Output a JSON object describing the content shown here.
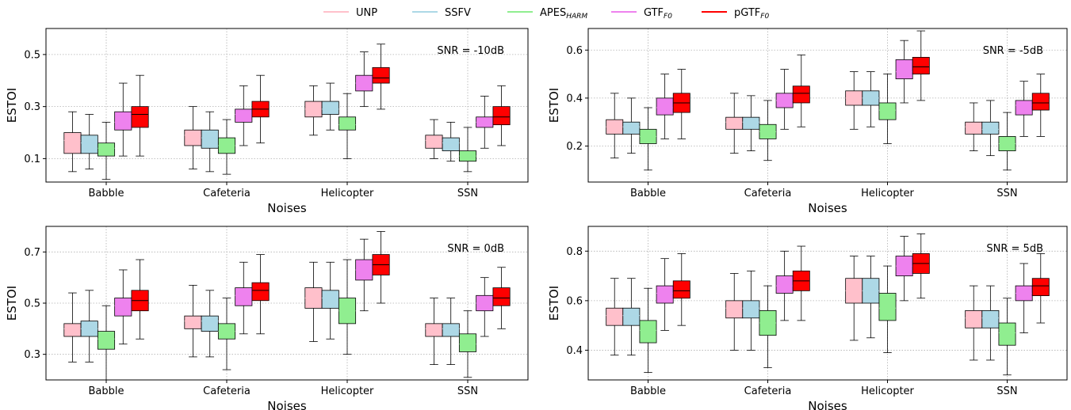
{
  "chart_data": {
    "type": "box",
    "categories": [
      "Babble",
      "Cafeteria",
      "Helicopter",
      "SSN"
    ],
    "xlabel": "Noises",
    "ylabel": "ESTOI",
    "legend": {
      "placement": "top-center",
      "entries": [
        {
          "name": "UNP",
          "sub": "",
          "color": "#ffc0cb"
        },
        {
          "name": "SSFV",
          "sub": "",
          "color": "#add8e6"
        },
        {
          "name": "APES",
          "sub": "HARM",
          "color": "#90ee90"
        },
        {
          "name": "GTF",
          "sub": "F0",
          "color": "#ee82ee"
        },
        {
          "name": "pGTF",
          "sub": "F0",
          "color": "#ff0000"
        }
      ]
    },
    "panels": [
      {
        "annotation": "SNR = -10dB",
        "ylim": [
          0.01,
          0.6
        ],
        "yticks": [
          0.1,
          0.3,
          0.5
        ],
        "ytick_labels": [
          "0.1",
          "0.3",
          "0.5"
        ],
        "boxes": [
          [
            [
              0.05,
              0.12,
              0.17,
              0.2,
              0.28
            ],
            [
              0.06,
              0.12,
              0.16,
              0.19,
              0.27
            ],
            [
              0.02,
              0.11,
              0.14,
              0.16,
              0.24
            ],
            [
              0.11,
              0.21,
              0.24,
              0.28,
              0.39
            ],
            [
              0.11,
              0.22,
              0.27,
              0.3,
              0.42
            ]
          ],
          [
            [
              0.06,
              0.15,
              0.19,
              0.21,
              0.3
            ],
            [
              0.05,
              0.14,
              0.18,
              0.21,
              0.28
            ],
            [
              0.04,
              0.12,
              0.15,
              0.18,
              0.25
            ],
            [
              0.15,
              0.24,
              0.27,
              0.29,
              0.38
            ],
            [
              0.16,
              0.26,
              0.29,
              0.32,
              0.42
            ]
          ],
          [
            [
              0.19,
              0.26,
              0.29,
              0.32,
              0.38
            ],
            [
              0.21,
              0.27,
              0.29,
              0.32,
              0.39
            ],
            [
              0.1,
              0.21,
              0.23,
              0.26,
              0.35
            ],
            [
              0.3,
              0.36,
              0.39,
              0.42,
              0.51
            ],
            [
              0.29,
              0.39,
              0.41,
              0.45,
              0.54
            ]
          ],
          [
            [
              0.1,
              0.14,
              0.17,
              0.19,
              0.25
            ],
            [
              0.09,
              0.13,
              0.16,
              0.18,
              0.24
            ],
            [
              0.05,
              0.09,
              0.11,
              0.13,
              0.22
            ],
            [
              0.14,
              0.22,
              0.24,
              0.26,
              0.34
            ],
            [
              0.15,
              0.23,
              0.26,
              0.3,
              0.38
            ]
          ]
        ]
      },
      {
        "annotation": "SNR = -5dB",
        "ylim": [
          0.05,
          0.69
        ],
        "yticks": [
          0.2,
          0.4,
          0.6
        ],
        "ytick_labels": [
          "0.2",
          "0.4",
          "0.6"
        ],
        "boxes": [
          [
            [
              0.15,
              0.25,
              0.28,
              0.31,
              0.42
            ],
            [
              0.17,
              0.25,
              0.28,
              0.3,
              0.4
            ],
            [
              0.1,
              0.21,
              0.24,
              0.27,
              0.36
            ],
            [
              0.23,
              0.33,
              0.36,
              0.4,
              0.5
            ],
            [
              0.23,
              0.34,
              0.38,
              0.42,
              0.52
            ]
          ],
          [
            [
              0.17,
              0.27,
              0.3,
              0.32,
              0.42
            ],
            [
              0.18,
              0.27,
              0.3,
              0.32,
              0.41
            ],
            [
              0.14,
              0.23,
              0.26,
              0.29,
              0.39
            ],
            [
              0.27,
              0.36,
              0.39,
              0.42,
              0.52
            ],
            [
              0.28,
              0.38,
              0.42,
              0.45,
              0.58
            ]
          ],
          [
            [
              0.27,
              0.37,
              0.4,
              0.43,
              0.51
            ],
            [
              0.28,
              0.37,
              0.4,
              0.43,
              0.51
            ],
            [
              0.21,
              0.31,
              0.35,
              0.38,
              0.5
            ],
            [
              0.38,
              0.48,
              0.51,
              0.56,
              0.64
            ],
            [
              0.39,
              0.5,
              0.53,
              0.57,
              0.68
            ]
          ],
          [
            [
              0.18,
              0.25,
              0.28,
              0.3,
              0.38
            ],
            [
              0.16,
              0.25,
              0.27,
              0.3,
              0.39
            ],
            [
              0.1,
              0.18,
              0.21,
              0.24,
              0.34
            ],
            [
              0.24,
              0.33,
              0.37,
              0.39,
              0.47
            ],
            [
              0.24,
              0.35,
              0.38,
              0.42,
              0.5
            ]
          ]
        ]
      },
      {
        "annotation": "SNR = 0dB",
        "ylim": [
          0.2,
          0.8
        ],
        "yticks": [
          0.3,
          0.5,
          0.7
        ],
        "ytick_labels": [
          "0.3",
          "0.5",
          "0.7"
        ],
        "boxes": [
          [
            [
              0.27,
              0.37,
              0.4,
              0.42,
              0.54
            ],
            [
              0.27,
              0.37,
              0.4,
              0.43,
              0.55
            ],
            [
              0.2,
              0.32,
              0.36,
              0.39,
              0.49
            ],
            [
              0.34,
              0.45,
              0.49,
              0.52,
              0.63
            ],
            [
              0.36,
              0.47,
              0.51,
              0.55,
              0.67
            ]
          ],
          [
            [
              0.29,
              0.4,
              0.43,
              0.45,
              0.57
            ],
            [
              0.29,
              0.39,
              0.43,
              0.45,
              0.55
            ],
            [
              0.24,
              0.36,
              0.39,
              0.42,
              0.52
            ],
            [
              0.38,
              0.49,
              0.53,
              0.56,
              0.66
            ],
            [
              0.38,
              0.51,
              0.55,
              0.58,
              0.69
            ]
          ],
          [
            [
              0.35,
              0.48,
              0.52,
              0.56,
              0.66
            ],
            [
              0.36,
              0.48,
              0.52,
              0.55,
              0.66
            ],
            [
              0.3,
              0.42,
              0.47,
              0.52,
              0.67
            ],
            [
              0.47,
              0.59,
              0.63,
              0.67,
              0.75
            ],
            [
              0.5,
              0.61,
              0.65,
              0.69,
              0.78
            ]
          ],
          [
            [
              0.26,
              0.37,
              0.4,
              0.42,
              0.52
            ],
            [
              0.26,
              0.37,
              0.4,
              0.42,
              0.52
            ],
            [
              0.21,
              0.31,
              0.34,
              0.38,
              0.47
            ],
            [
              0.37,
              0.47,
              0.5,
              0.53,
              0.6
            ],
            [
              0.4,
              0.49,
              0.52,
              0.56,
              0.64
            ]
          ]
        ]
      },
      {
        "annotation": "SNR = 5dB",
        "ylim": [
          0.28,
          0.9
        ],
        "yticks": [
          0.4,
          0.6,
          0.8
        ],
        "ytick_labels": [
          "0.4",
          "0.6",
          "0.8"
        ],
        "boxes": [
          [
            [
              0.38,
              0.5,
              0.54,
              0.57,
              0.69
            ],
            [
              0.38,
              0.5,
              0.54,
              0.57,
              0.69
            ],
            [
              0.31,
              0.43,
              0.48,
              0.52,
              0.65
            ],
            [
              0.48,
              0.59,
              0.63,
              0.66,
              0.77
            ],
            [
              0.5,
              0.61,
              0.64,
              0.68,
              0.79
            ]
          ],
          [
            [
              0.4,
              0.53,
              0.57,
              0.6,
              0.71
            ],
            [
              0.4,
              0.53,
              0.57,
              0.6,
              0.72
            ],
            [
              0.33,
              0.46,
              0.51,
              0.56,
              0.66
            ],
            [
              0.52,
              0.63,
              0.66,
              0.7,
              0.8
            ],
            [
              0.52,
              0.64,
              0.68,
              0.72,
              0.82
            ]
          ],
          [
            [
              0.44,
              0.59,
              0.64,
              0.69,
              0.78
            ],
            [
              0.45,
              0.59,
              0.64,
              0.69,
              0.78
            ],
            [
              0.39,
              0.52,
              0.57,
              0.63,
              0.74
            ],
            [
              0.6,
              0.7,
              0.74,
              0.78,
              0.86
            ],
            [
              0.61,
              0.71,
              0.75,
              0.79,
              0.87
            ]
          ],
          [
            [
              0.36,
              0.49,
              0.53,
              0.56,
              0.66
            ],
            [
              0.36,
              0.49,
              0.53,
              0.56,
              0.66
            ],
            [
              0.3,
              0.42,
              0.47,
              0.51,
              0.61
            ],
            [
              0.47,
              0.6,
              0.63,
              0.66,
              0.75
            ],
            [
              0.51,
              0.62,
              0.66,
              0.69,
              0.79
            ]
          ]
        ]
      }
    ]
  }
}
